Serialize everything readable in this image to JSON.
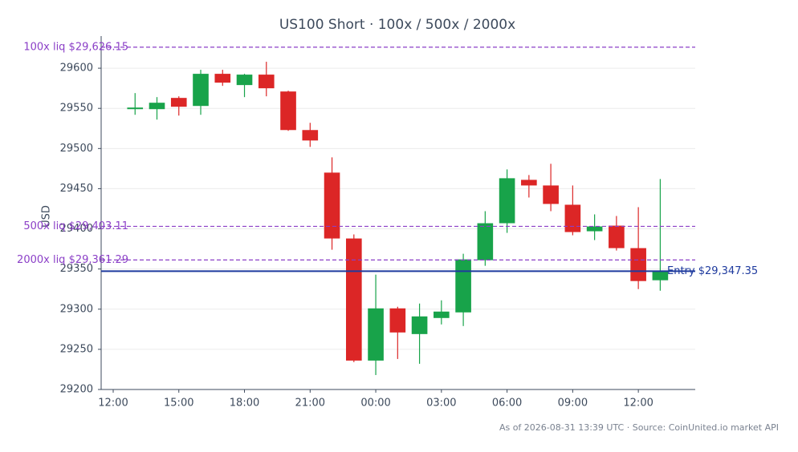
{
  "chart_data": {
    "type": "candlestick",
    "title": "US100 Short · 100x / 500x / 2000x",
    "ylabel": "USD",
    "x": [
      13,
      14,
      15,
      16,
      17,
      18,
      19,
      20,
      21,
      22,
      23,
      24,
      25,
      26,
      27,
      28,
      29,
      30,
      31,
      32,
      33,
      34,
      35,
      36,
      37
    ],
    "open": [
      29549,
      29549,
      29563,
      29553,
      29593,
      29579,
      29592,
      29571,
      29523,
      29470,
      29388,
      29236,
      29301,
      29269,
      29289,
      29296,
      29361,
      29407,
      29461,
      29454,
      29430,
      29397,
      29404,
      29376,
      29336
    ],
    "high": [
      29569,
      29564,
      29565,
      29598,
      29598,
      29593,
      29608,
      29572,
      29532,
      29489,
      29393,
      29343,
      29303,
      29307,
      29311,
      29369,
      29422,
      29474,
      29467,
      29481,
      29454,
      29418,
      29416,
      29427,
      29462
    ],
    "low": [
      29542,
      29536,
      29541,
      29542,
      29578,
      29564,
      29565,
      29522,
      29502,
      29374,
      29234,
      29218,
      29238,
      29232,
      29281,
      29279,
      29354,
      29395,
      29439,
      29422,
      29392,
      29386,
      29373,
      29325,
      29323
    ],
    "close": [
      29551,
      29557,
      29552,
      29593,
      29582,
      29592,
      29575,
      29523,
      29510,
      29388,
      29236,
      29301,
      29271,
      29291,
      29297,
      29362,
      29407,
      29463,
      29454,
      29431,
      29396,
      29403,
      29376,
      29335,
      29348
    ],
    "up_color": "#18a34a",
    "down_color": "#dc2626",
    "xlim": [
      11.45,
      38.6
    ],
    "xticks": [
      {
        "value": 12,
        "label": "12:00"
      },
      {
        "value": 15,
        "label": "15:00"
      },
      {
        "value": 18,
        "label": "18:00"
      },
      {
        "value": 21,
        "label": "21:00"
      },
      {
        "value": 24,
        "label": "00:00"
      },
      {
        "value": 27,
        "label": "03:00"
      },
      {
        "value": 30,
        "label": "06:00"
      },
      {
        "value": 33,
        "label": "09:00"
      },
      {
        "value": 36,
        "label": "12:00"
      }
    ],
    "ylim": [
      29200,
      29640
    ],
    "yticks": [
      29200,
      29250,
      29300,
      29350,
      29400,
      29450,
      29500,
      29550,
      29600
    ],
    "grid": true,
    "hlines": [
      {
        "value": 29626.15,
        "label": "100x liq $29,626.15",
        "color": "#8b3fc7",
        "style": "dashed"
      },
      {
        "value": 29403.11,
        "label": "500x liq $29,403.11",
        "color": "#8b3fc7",
        "style": "dashed"
      },
      {
        "value": 29361.29,
        "label": "2000x liq $29,361.29",
        "color": "#8b3fc7",
        "style": "dashed"
      },
      {
        "value": 29347.35,
        "label": "Entry $29,347.35",
        "color": "#1e3a9e",
        "style": "solid"
      }
    ],
    "footnote": "As of 2026-08-31 13:39 UTC · Source: CoinUnited.io market API"
  }
}
